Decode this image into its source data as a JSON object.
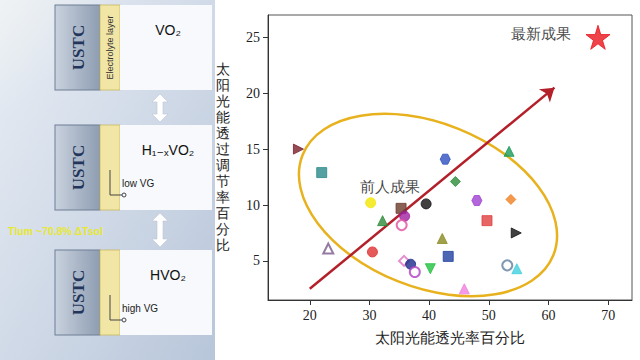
{
  "diagram": {
    "panels": [
      {
        "badge": "USTC",
        "layer": "Electrolyte layer",
        "material": "VO₂"
      },
      {
        "badge": "USTC",
        "gate": "low VG",
        "material": "H₁₋ₓVO₂"
      },
      {
        "badge": "USTC",
        "gate": "high VG",
        "material": "HVO₂"
      }
    ],
    "band": "Tlum ~70.8%   ΔTsol"
  },
  "chart_data": {
    "type": "scatter",
    "x_label": "太阳光能透光率百分比",
    "y_label": "太阳光能透过调节率百分比",
    "xlim": [
      13,
      74
    ],
    "xticks": [
      20,
      30,
      40,
      50,
      60,
      70
    ],
    "ylim": [
      1.5,
      27
    ],
    "yticks": [
      5,
      10,
      15,
      20,
      25
    ],
    "grid": false,
    "series": [
      {
        "values": [
          [
            18.1,
            15.0
          ],
          [
            22.0,
            12.9
          ],
          [
            30.2,
            10.2
          ],
          [
            32.2,
            8.6
          ],
          [
            35.3,
            9.7
          ],
          [
            35.9,
            9.0
          ],
          [
            23.1,
            6.1
          ],
          [
            30.5,
            5.8
          ],
          [
            35.4,
            8.2
          ],
          [
            35.8,
            5.0
          ],
          [
            36.9,
            4.7
          ],
          [
            37.6,
            4.0
          ],
          [
            39.5,
            10.1
          ],
          [
            40.2,
            4.3
          ],
          [
            42.7,
            14.1
          ],
          [
            42.2,
            7.0
          ],
          [
            44.4,
            12.1
          ],
          [
            43.2,
            5.4
          ],
          [
            45.9,
            2.5
          ],
          [
            48.0,
            10.4
          ],
          [
            49.7,
            8.6
          ],
          [
            53.4,
            14.8
          ],
          [
            53.7,
            10.5
          ],
          [
            54.6,
            7.5
          ],
          [
            53.1,
            4.6
          ],
          [
            54.7,
            4.3
          ]
        ],
        "colors": [
          "#7a1f2b",
          "#2a8a8a",
          "#f2e600",
          "#2e8b3a",
          "#6b3a2a",
          "#a020a0",
          "#7a5a8a",
          "#e03030",
          "#e050a0",
          "#e070c0",
          "#1a2a8a",
          "#b040c0",
          "#111111",
          "#20c040",
          "#3050c0",
          "#8a8a20",
          "#2e8b3a",
          "#2040a0",
          "#f080e0",
          "#a040d0",
          "#e04040",
          "#1a9a5a",
          "#f08020",
          "#111111",
          "#6080a0",
          "#40d0e0"
        ],
        "markers": [
          "triangle-right",
          "rect",
          "circle",
          "triangle",
          "rect",
          "circle",
          "triangle-open",
          "circle",
          "circle-open",
          "diamond-open",
          "circle",
          "circle-open",
          "circle",
          "triangle-down",
          "hexagon",
          "triangle",
          "diamond",
          "rect",
          "triangle",
          "hexagon",
          "rect",
          "triangle",
          "diamond",
          "triangle-right",
          "circle-open",
          "triangle"
        ]
      },
      {
        "values": [
          [
            68.3,
            25.0
          ]
        ],
        "color": "#e8141b",
        "marker": "star"
      }
    ],
    "annotations": [
      {
        "text": "前人成果",
        "x": 33.4,
        "y": 11.6
      },
      {
        "text": "最新成果",
        "x": 58.8,
        "y": 25.3
      }
    ],
    "arrow": {
      "from": [
        20,
        2.5
      ],
      "to": [
        61,
        20.5
      ],
      "color": "#b3202a"
    }
  }
}
